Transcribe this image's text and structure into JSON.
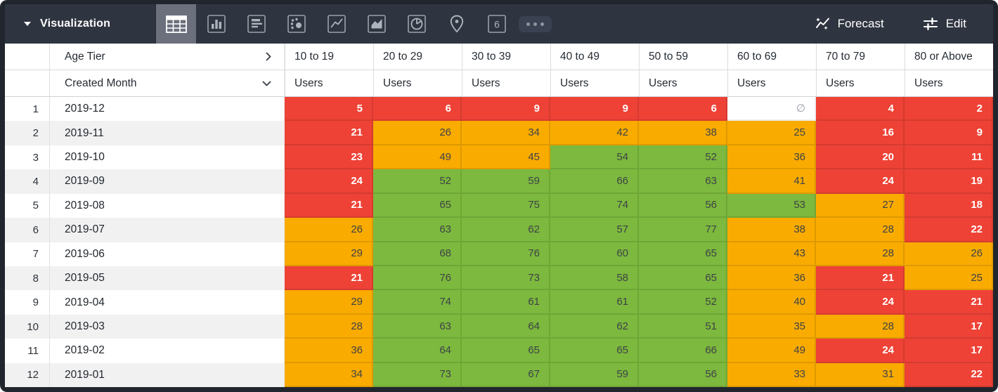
{
  "topbar": {
    "visualization_label": "Visualization",
    "forecast_label": "Forecast",
    "edit_label": "Edit",
    "icons": [
      {
        "name": "table-chart-icon",
        "selected": true
      },
      {
        "name": "bar-chart-icon",
        "selected": false
      },
      {
        "name": "row-chart-icon",
        "selected": false
      },
      {
        "name": "scatter-chart-icon",
        "selected": false
      },
      {
        "name": "line-chart-icon",
        "selected": false
      },
      {
        "name": "area-chart-icon",
        "selected": false
      },
      {
        "name": "pie-chart-icon",
        "selected": false
      },
      {
        "name": "map-pin-icon",
        "selected": false
      },
      {
        "name": "single-value-icon",
        "selected": false,
        "glyph_text": "6"
      },
      {
        "name": "more-options-icon",
        "selected": false
      }
    ]
  },
  "table": {
    "pivot_label": "Age Tier",
    "dimension_label": "Created Month",
    "measure_label": "Users",
    "null_symbol": "∅",
    "tiers": [
      "10 to 19",
      "20 to 29",
      "30 to 39",
      "40 to 49",
      "50 to 59",
      "60 to 69",
      "70 to 79",
      "80 or Above"
    ],
    "colors": {
      "red": "#ee4236",
      "orange": "#f9ab00",
      "green": "#7cb93e"
    },
    "rows": [
      {
        "num": 1,
        "month": "2019-12",
        "cells": [
          {
            "v": 5,
            "c": "red"
          },
          {
            "v": 6,
            "c": "red"
          },
          {
            "v": 9,
            "c": "red"
          },
          {
            "v": 9,
            "c": "red"
          },
          {
            "v": 6,
            "c": "red"
          },
          {
            "v": null,
            "c": "null"
          },
          {
            "v": 4,
            "c": "red"
          },
          {
            "v": 2,
            "c": "red"
          }
        ]
      },
      {
        "num": 2,
        "month": "2019-11",
        "cells": [
          {
            "v": 21,
            "c": "red"
          },
          {
            "v": 26,
            "c": "orange"
          },
          {
            "v": 34,
            "c": "orange"
          },
          {
            "v": 42,
            "c": "orange"
          },
          {
            "v": 38,
            "c": "orange"
          },
          {
            "v": 25,
            "c": "orange"
          },
          {
            "v": 16,
            "c": "red"
          },
          {
            "v": 9,
            "c": "red"
          }
        ]
      },
      {
        "num": 3,
        "month": "2019-10",
        "cells": [
          {
            "v": 23,
            "c": "red"
          },
          {
            "v": 49,
            "c": "orange"
          },
          {
            "v": 45,
            "c": "orange"
          },
          {
            "v": 54,
            "c": "green"
          },
          {
            "v": 52,
            "c": "green"
          },
          {
            "v": 36,
            "c": "orange"
          },
          {
            "v": 20,
            "c": "red"
          },
          {
            "v": 11,
            "c": "red"
          }
        ]
      },
      {
        "num": 4,
        "month": "2019-09",
        "cells": [
          {
            "v": 24,
            "c": "red"
          },
          {
            "v": 52,
            "c": "green"
          },
          {
            "v": 59,
            "c": "green"
          },
          {
            "v": 66,
            "c": "green"
          },
          {
            "v": 63,
            "c": "green"
          },
          {
            "v": 41,
            "c": "orange"
          },
          {
            "v": 24,
            "c": "red"
          },
          {
            "v": 19,
            "c": "red"
          }
        ]
      },
      {
        "num": 5,
        "month": "2019-08",
        "cells": [
          {
            "v": 21,
            "c": "red"
          },
          {
            "v": 65,
            "c": "green"
          },
          {
            "v": 75,
            "c": "green"
          },
          {
            "v": 74,
            "c": "green"
          },
          {
            "v": 56,
            "c": "green"
          },
          {
            "v": 53,
            "c": "green"
          },
          {
            "v": 27,
            "c": "orange"
          },
          {
            "v": 18,
            "c": "red"
          }
        ]
      },
      {
        "num": 6,
        "month": "2019-07",
        "cells": [
          {
            "v": 26,
            "c": "orange"
          },
          {
            "v": 63,
            "c": "green"
          },
          {
            "v": 62,
            "c": "green"
          },
          {
            "v": 57,
            "c": "green"
          },
          {
            "v": 77,
            "c": "green"
          },
          {
            "v": 38,
            "c": "orange"
          },
          {
            "v": 28,
            "c": "orange"
          },
          {
            "v": 22,
            "c": "red"
          }
        ]
      },
      {
        "num": 7,
        "month": "2019-06",
        "cells": [
          {
            "v": 29,
            "c": "orange"
          },
          {
            "v": 68,
            "c": "green"
          },
          {
            "v": 76,
            "c": "green"
          },
          {
            "v": 60,
            "c": "green"
          },
          {
            "v": 65,
            "c": "green"
          },
          {
            "v": 43,
            "c": "orange"
          },
          {
            "v": 28,
            "c": "orange"
          },
          {
            "v": 26,
            "c": "orange"
          }
        ]
      },
      {
        "num": 8,
        "month": "2019-05",
        "cells": [
          {
            "v": 21,
            "c": "red"
          },
          {
            "v": 76,
            "c": "green"
          },
          {
            "v": 73,
            "c": "green"
          },
          {
            "v": 58,
            "c": "green"
          },
          {
            "v": 65,
            "c": "green"
          },
          {
            "v": 36,
            "c": "orange"
          },
          {
            "v": 21,
            "c": "red"
          },
          {
            "v": 25,
            "c": "orange"
          }
        ]
      },
      {
        "num": 9,
        "month": "2019-04",
        "cells": [
          {
            "v": 29,
            "c": "orange"
          },
          {
            "v": 74,
            "c": "green"
          },
          {
            "v": 61,
            "c": "green"
          },
          {
            "v": 61,
            "c": "green"
          },
          {
            "v": 52,
            "c": "green"
          },
          {
            "v": 40,
            "c": "orange"
          },
          {
            "v": 24,
            "c": "red"
          },
          {
            "v": 21,
            "c": "red"
          }
        ]
      },
      {
        "num": 10,
        "month": "2019-03",
        "cells": [
          {
            "v": 28,
            "c": "orange"
          },
          {
            "v": 63,
            "c": "green"
          },
          {
            "v": 64,
            "c": "green"
          },
          {
            "v": 62,
            "c": "green"
          },
          {
            "v": 51,
            "c": "green"
          },
          {
            "v": 35,
            "c": "orange"
          },
          {
            "v": 28,
            "c": "orange"
          },
          {
            "v": 17,
            "c": "red"
          }
        ]
      },
      {
        "num": 11,
        "month": "2019-02",
        "cells": [
          {
            "v": 36,
            "c": "orange"
          },
          {
            "v": 64,
            "c": "green"
          },
          {
            "v": 65,
            "c": "green"
          },
          {
            "v": 65,
            "c": "green"
          },
          {
            "v": 66,
            "c": "green"
          },
          {
            "v": 49,
            "c": "orange"
          },
          {
            "v": 24,
            "c": "red"
          },
          {
            "v": 17,
            "c": "red"
          }
        ]
      },
      {
        "num": 12,
        "month": "2019-01",
        "cells": [
          {
            "v": 34,
            "c": "orange"
          },
          {
            "v": 73,
            "c": "green"
          },
          {
            "v": 67,
            "c": "green"
          },
          {
            "v": 59,
            "c": "green"
          },
          {
            "v": 56,
            "c": "green"
          },
          {
            "v": 33,
            "c": "orange"
          },
          {
            "v": 31,
            "c": "orange"
          },
          {
            "v": 22,
            "c": "red"
          }
        ]
      }
    ]
  }
}
